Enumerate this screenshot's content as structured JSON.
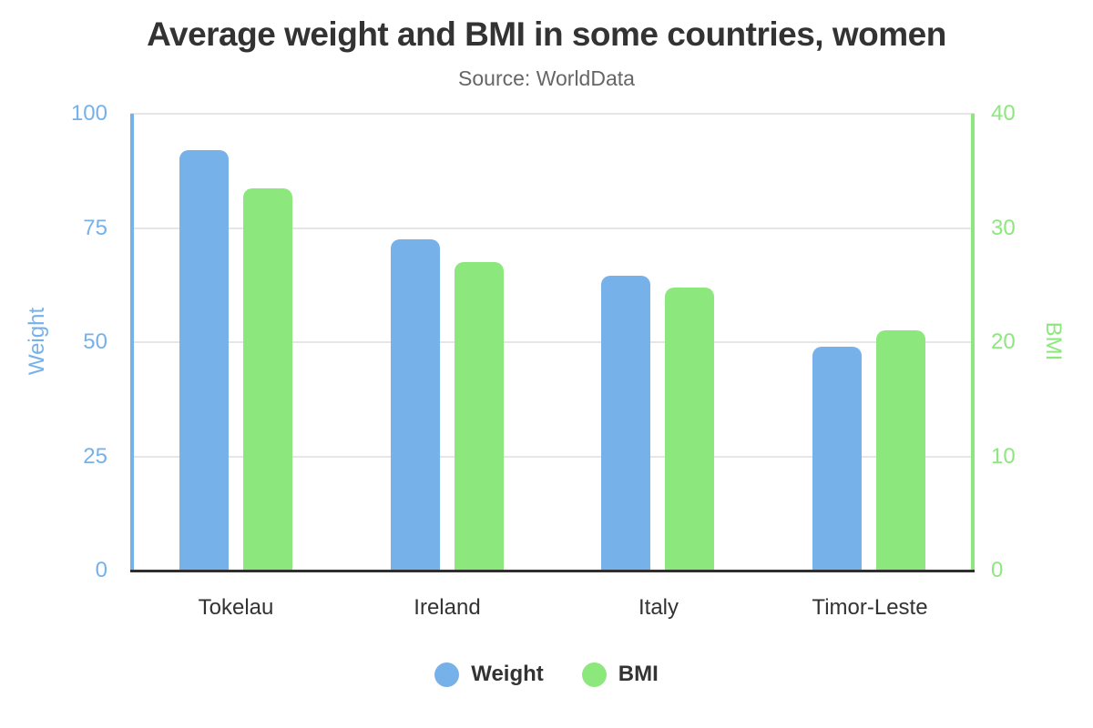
{
  "title": "Average weight and BMI in some countries, women",
  "subtitle": "Source: WorldData",
  "colors": {
    "weight_blue": "#76b1ea",
    "bmi_green": "#8ce87d",
    "text_dark": "#333333",
    "subtitle_gray": "#666666",
    "gridline": "#e6e6e6",
    "x_axis_line": "#2f2f2f"
  },
  "chart_data": {
    "type": "bar",
    "categories": [
      "Tokelau",
      "Ireland",
      "Italy",
      "Timor-Leste"
    ],
    "series": [
      {
        "name": "Weight",
        "axis": "left",
        "color": "#76b1ea",
        "values": [
          92,
          72.5,
          64.5,
          49
        ]
      },
      {
        "name": "BMI",
        "axis": "right",
        "color": "#8ce87d",
        "values": [
          33.5,
          27,
          24.8,
          21
        ]
      }
    ],
    "left_axis": {
      "label": "Weight",
      "min": 0,
      "max": 100,
      "ticks": [
        100,
        75,
        50,
        25,
        0
      ]
    },
    "right_axis": {
      "label": "BMI",
      "min": 0,
      "max": 40,
      "ticks": [
        40,
        30,
        20,
        10,
        0
      ]
    },
    "grid": true,
    "legend_position": "bottom",
    "legend": [
      "Weight",
      "BMI"
    ]
  }
}
